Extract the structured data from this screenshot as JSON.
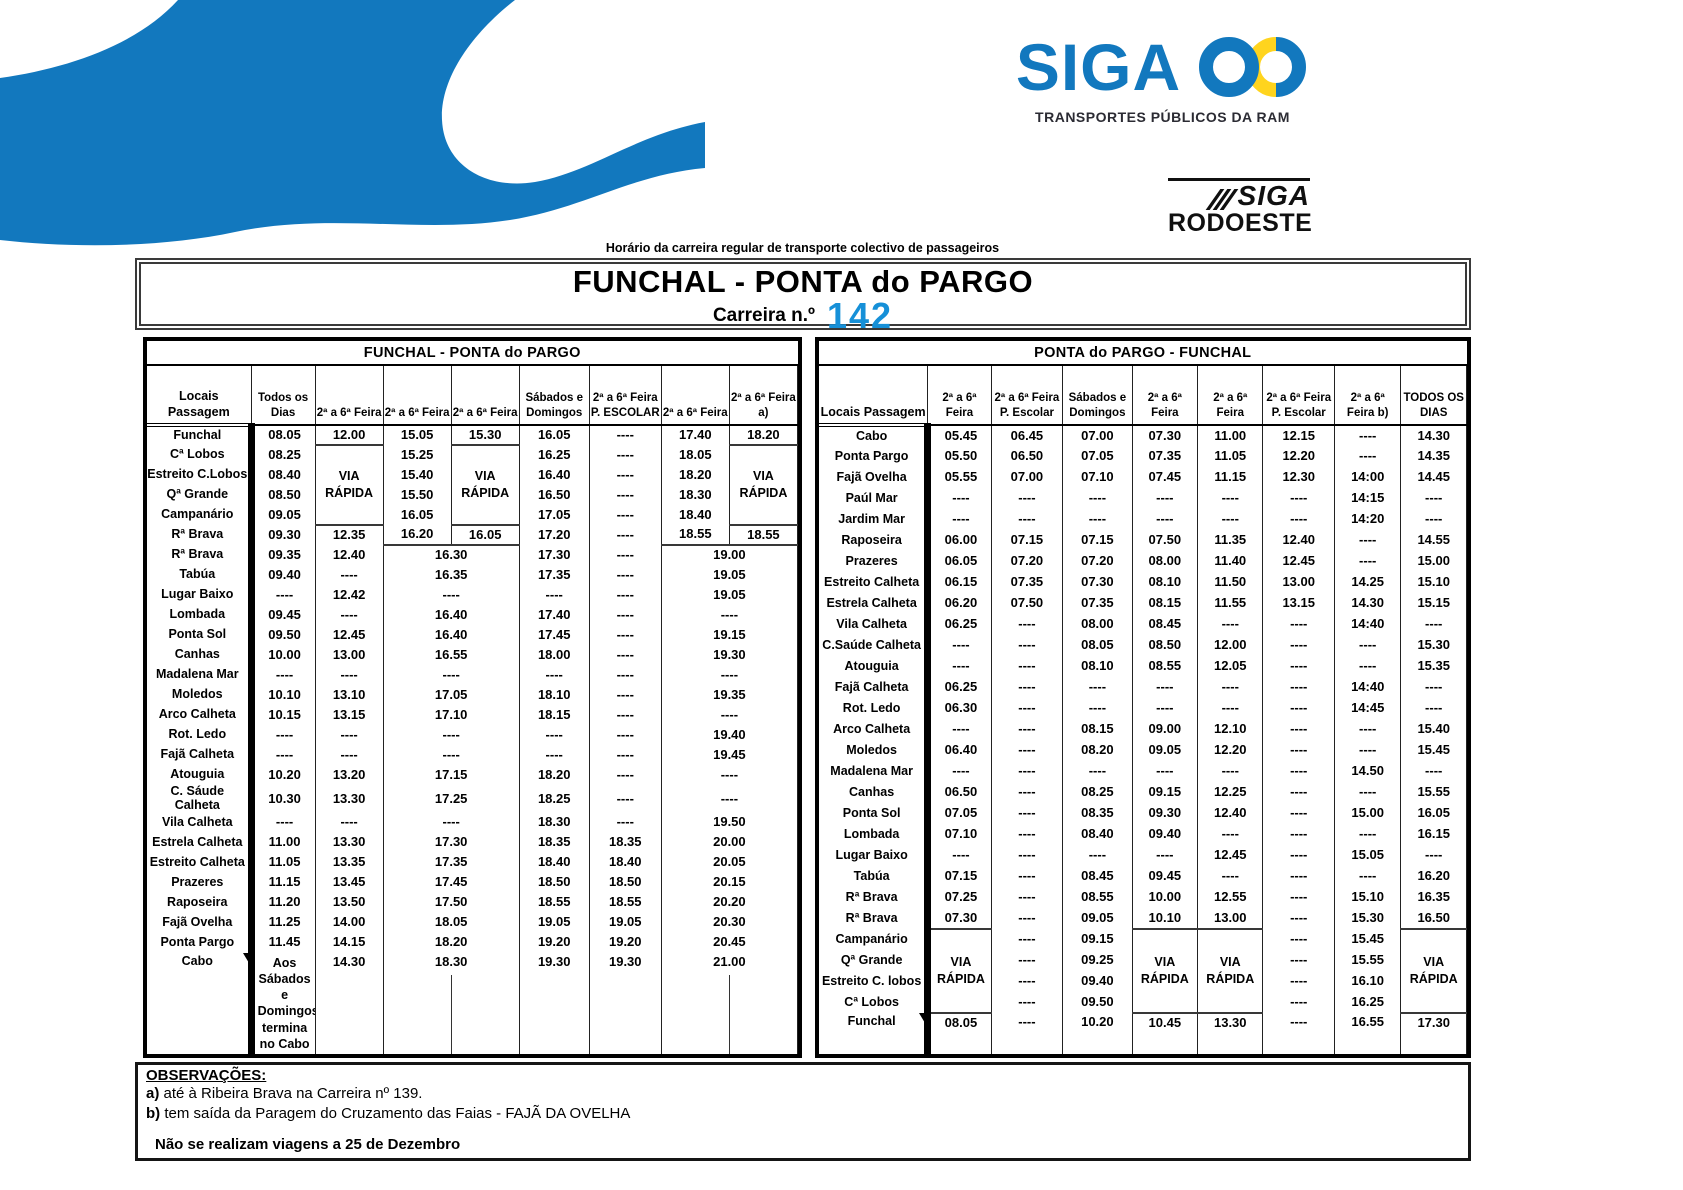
{
  "colors": {
    "logo_blue": "#1278BE",
    "accent_blue": "#1690D8",
    "logo_yellow": "#FFD41E",
    "tagline_dark": "#2B2B33"
  },
  "branding": {
    "logo_text": "SIGA",
    "tagline": "TRANSPORTES PÚBLICOS DA RAM",
    "rodoeste_top": "SIGA",
    "rodoeste_bottom": "RODOESTE"
  },
  "header": {
    "subtitle": "Horário da carreira regular de transporte colectivo de passageiros",
    "title": "FUNCHAL - PONTA do PARGO",
    "route_label": "Carreira n.º",
    "route_number": "142"
  },
  "tables": [
    {
      "title": "FUNCHAL - PONTA do PARGO",
      "headers": [
        "Locais Passagem",
        "Todos os Dias",
        "2ª a 6ª Feira",
        "2ª a 6ª Feira",
        "2ª a 6ª Feira",
        "Sábados e Domingos",
        "2ª a 6ª Feira P. ESCOLAR",
        "2ª a 6ª Feira",
        "2ª a 6ª Feira a)"
      ],
      "rows": [
        [
          "Funchal",
          "08.05",
          "12.00",
          "15.05",
          "15.30",
          "16.05",
          "----",
          "17.40",
          "18.20"
        ],
        [
          "Cª Lobos",
          "08.25",
          {
            "t": "VIA RÁPIDA",
            "rs": 4,
            "c": "via"
          },
          "15.25",
          {
            "t": "VIA RÁPIDA",
            "rs": 4,
            "c": "via"
          },
          "16.25",
          "----",
          "18.05",
          {
            "t": "VIA RÁPIDA",
            "rs": 4,
            "c": "via"
          }
        ],
        [
          "Estreito C.Lobos",
          "08.40",
          "15.40",
          "16.40",
          "----",
          "18.20"
        ],
        [
          "Qª Grande",
          "08.50",
          "15.50",
          "16.50",
          "----",
          "18.30"
        ],
        [
          "Campanário",
          "09.05",
          "16.05",
          "17.05",
          "----",
          "18.40"
        ],
        [
          "Rª Brava",
          "09.30",
          "12.35",
          "16.20",
          "16.05",
          "17.20",
          "----",
          "18.55",
          "18.55"
        ],
        [
          "Rª Brava",
          "09.35",
          "12.40",
          {
            "t": "16.30",
            "cs": 2,
            "c": "bt"
          },
          "17.30",
          "----",
          {
            "t": "19.00",
            "cs": 2,
            "c": "bt"
          }
        ],
        [
          "Tabúa",
          "09.40",
          "----",
          {
            "t": "16.35",
            "cs": 2
          },
          "17.35",
          "----",
          {
            "t": "19.05",
            "cs": 2
          }
        ],
        [
          "Lugar Baixo",
          "----",
          "12.42",
          {
            "t": "----",
            "cs": 2
          },
          "----",
          "----",
          {
            "t": "19.05",
            "cs": 2
          }
        ],
        [
          "Lombada",
          "09.45",
          "----",
          {
            "t": "16.40",
            "cs": 2
          },
          "17.40",
          "----",
          {
            "t": "----",
            "cs": 2
          }
        ],
        [
          "Ponta Sol",
          "09.50",
          "12.45",
          {
            "t": "16.40",
            "cs": 2
          },
          "17.45",
          "----",
          {
            "t": "19.15",
            "cs": 2
          }
        ],
        [
          "Canhas",
          "10.00",
          "13.00",
          {
            "t": "16.55",
            "cs": 2
          },
          "18.00",
          "----",
          {
            "t": "19.30",
            "cs": 2
          }
        ],
        [
          "Madalena Mar",
          "----",
          "----",
          {
            "t": "----",
            "cs": 2
          },
          "----",
          "----",
          {
            "t": "----",
            "cs": 2
          }
        ],
        [
          "Moledos",
          "10.10",
          "13.10",
          {
            "t": "17.05",
            "cs": 2
          },
          "18.10",
          "----",
          {
            "t": "19.35",
            "cs": 2
          }
        ],
        [
          "Arco Calheta",
          "10.15",
          "13.15",
          {
            "t": "17.10",
            "cs": 2
          },
          "18.15",
          "----",
          {
            "t": "----",
            "cs": 2
          }
        ],
        [
          "Rot. Ledo",
          "----",
          "----",
          {
            "t": "----",
            "cs": 2
          },
          "----",
          "----",
          {
            "t": "19.40",
            "cs": 2
          }
        ],
        [
          "Fajã Calheta",
          "----",
          "----",
          {
            "t": "----",
            "cs": 2
          },
          "----",
          "----",
          {
            "t": "19.45",
            "cs": 2
          }
        ],
        [
          "Atouguia",
          "10.20",
          "13.20",
          {
            "t": "17.15",
            "cs": 2
          },
          "18.20",
          "----",
          {
            "t": "----",
            "cs": 2
          }
        ],
        [
          "C. Sáude Calheta",
          "10.30",
          "13.30",
          {
            "t": "17.25",
            "cs": 2
          },
          "18.25",
          "----",
          {
            "t": "----",
            "cs": 2
          }
        ],
        [
          "Vila Calheta",
          "----",
          "----",
          {
            "t": "----",
            "cs": 2
          },
          "18.30",
          "----",
          {
            "t": "19.50",
            "cs": 2
          }
        ],
        [
          "Estrela Calheta",
          "11.00",
          "13.30",
          {
            "t": "17.30",
            "cs": 2
          },
          "18.35",
          "18.35",
          {
            "t": "20.00",
            "cs": 2
          }
        ],
        [
          "Estreito Calheta",
          "11.05",
          "13.35",
          {
            "t": "17.35",
            "cs": 2
          },
          "18.40",
          "18.40",
          {
            "t": "20.05",
            "cs": 2
          }
        ],
        [
          "Prazeres",
          "11.15",
          "13.45",
          {
            "t": "17.45",
            "cs": 2
          },
          "18.50",
          "18.50",
          {
            "t": "20.15",
            "cs": 2
          }
        ],
        [
          "Raposeira",
          "11.20",
          "13.50",
          {
            "t": "17.50",
            "cs": 2
          },
          "18.55",
          "18.55",
          {
            "t": "20.20",
            "cs": 2
          }
        ],
        [
          "Fajã Ovelha",
          "11.25",
          "14.00",
          {
            "t": "18.05",
            "cs": 2
          },
          "19.05",
          "19.05",
          {
            "t": "20.30",
            "cs": 2
          }
        ],
        [
          "Ponta Pargo",
          "11.45",
          "14.15",
          {
            "t": "18.20",
            "cs": 2
          },
          "19.20",
          "19.20",
          {
            "t": "20.45",
            "cs": 2
          }
        ],
        [
          {
            "t": "Cabo",
            "c": "arrowc"
          },
          {
            "t": "Aos Sábados e Domingos termina no Cabo",
            "c": "note"
          },
          "14.30",
          {
            "t": "18.30",
            "cs": 2,
            "c": "split"
          },
          "19.30",
          "19.30",
          {
            "t": "21.00",
            "cs": 2,
            "c": "split"
          }
        ]
      ]
    },
    {
      "title": "PONTA do PARGO - FUNCHAL",
      "headers": [
        "Locais Passagem",
        "2ª a 6ª Feira",
        "2ª a 6ª Feira P. Escolar",
        "Sábados e Domingos",
        "2ª a 6ª Feira",
        "2ª a 6ª Feira",
        "2ª a 6ª Feira P. Escolar",
        "2ª a 6ª Feira b)",
        "TODOS OS DIAS"
      ],
      "rows": [
        [
          "Cabo",
          "05.45",
          "06.45",
          "07.00",
          "07.30",
          "11.00",
          "12.15",
          "----",
          "14.30"
        ],
        [
          "Ponta Pargo",
          "05.50",
          "06.50",
          "07.05",
          "07.35",
          "11.05",
          "12.20",
          "----",
          "14.35"
        ],
        [
          "Fajã Ovelha",
          "05.55",
          "07.00",
          "07.10",
          "07.45",
          "11.15",
          "12.30",
          "14:00",
          "14.45"
        ],
        [
          "Paúl Mar",
          "----",
          "----",
          "----",
          "----",
          "----",
          "----",
          "14:15",
          "----"
        ],
        [
          "Jardim Mar",
          "----",
          "----",
          "----",
          "----",
          "----",
          "----",
          "14:20",
          "----"
        ],
        [
          "Raposeira",
          "06.00",
          "07.15",
          "07.15",
          "07.50",
          "11.35",
          "12.40",
          "----",
          "14.55"
        ],
        [
          "Prazeres",
          "06.05",
          "07.20",
          "07.20",
          "08.00",
          "11.40",
          "12.45",
          "----",
          "15.00"
        ],
        [
          "Estreito Calheta",
          "06.15",
          "07.35",
          "07.30",
          "08.10",
          "11.50",
          "13.00",
          "14.25",
          "15.10"
        ],
        [
          "Estrela Calheta",
          "06.20",
          "07.50",
          "07.35",
          "08.15",
          "11.55",
          "13.15",
          "14.30",
          "15.15"
        ],
        [
          "Vila Calheta",
          "06.25",
          "----",
          "08.00",
          "08.45",
          "----",
          "----",
          "14:40",
          "----"
        ],
        [
          "C.Saúde Calheta",
          "----",
          "----",
          "08.05",
          "08.50",
          "12.00",
          "----",
          "----",
          "15.30"
        ],
        [
          "Atouguia",
          "----",
          "----",
          "08.10",
          "08.55",
          "12.05",
          "----",
          "----",
          "15.35"
        ],
        [
          "Fajã Calheta",
          "06.25",
          "----",
          "----",
          "----",
          "----",
          "----",
          "14:40",
          "----"
        ],
        [
          "Rot. Ledo",
          "06.30",
          "----",
          "----",
          "----",
          "----",
          "----",
          "14:45",
          "----"
        ],
        [
          "Arco Calheta",
          "----",
          "----",
          "08.15",
          "09.00",
          "12.10",
          "----",
          "----",
          "15.40"
        ],
        [
          "Moledos",
          "06.40",
          "----",
          "08.20",
          "09.05",
          "12.20",
          "----",
          "----",
          "15.45"
        ],
        [
          "Madalena Mar",
          "----",
          "----",
          "----",
          "----",
          "----",
          "----",
          "14.50",
          "----"
        ],
        [
          "Canhas",
          "06.50",
          "----",
          "08.25",
          "09.15",
          "12.25",
          "----",
          "----",
          "15.55"
        ],
        [
          "Ponta Sol",
          "07.05",
          "----",
          "08.35",
          "09.30",
          "12.40",
          "----",
          "15.00",
          "16.05"
        ],
        [
          "Lombada",
          "07.10",
          "----",
          "08.40",
          "09.40",
          "----",
          "----",
          "----",
          "16.15"
        ],
        [
          "Lugar Baixo",
          "----",
          "----",
          "----",
          "----",
          "12.45",
          "----",
          "15.05",
          "----"
        ],
        [
          "Tabúa",
          "07.15",
          "----",
          "08.45",
          "09.45",
          "----",
          "----",
          "----",
          "16.20"
        ],
        [
          "Rª Brava",
          "07.25",
          "----",
          "08.55",
          "10.00",
          "12.55",
          "----",
          "15.10",
          "16.35"
        ],
        [
          "Rª Brava",
          "07.30",
          "----",
          "09.05",
          "10.10",
          "13.00",
          "----",
          "15.30",
          "16.50"
        ],
        [
          "Campanário",
          {
            "t": "VIA RÁPIDA",
            "rs": 4,
            "c": "via"
          },
          "----",
          "09.15",
          {
            "t": "VIA RÁPIDA",
            "rs": 4,
            "c": "via"
          },
          {
            "t": "VIA RÁPIDA",
            "rs": 4,
            "c": "via"
          },
          "----",
          "15.45",
          {
            "t": "VIA RÁPIDA",
            "rs": 4,
            "c": "via"
          }
        ],
        [
          "Qª Grande",
          "----",
          "09.25",
          "----",
          "15.55"
        ],
        [
          "Estreito C. lobos",
          "----",
          "09.40",
          "----",
          "16.10"
        ],
        [
          "Cª Lobos",
          "----",
          "09.50",
          "----",
          "16.25"
        ],
        [
          {
            "t": "Funchal",
            "c": "arrowc"
          },
          "08.05",
          "----",
          "10.20",
          "10.45",
          "13.30",
          "----",
          "16.55",
          "17.30"
        ]
      ]
    }
  ],
  "observations": {
    "title": "OBSERVAÇÕES:",
    "notes": [
      {
        "label": "a)",
        "text": "até à Ribeira Brava na Carreira nº 139."
      },
      {
        "label": "b)",
        "text": "tem saída da Paragem do Cruzamento das Faias - FAJÃ DA OVELHA"
      }
    ],
    "footer": "Não se realizam viagens a 25 de Dezembro"
  }
}
